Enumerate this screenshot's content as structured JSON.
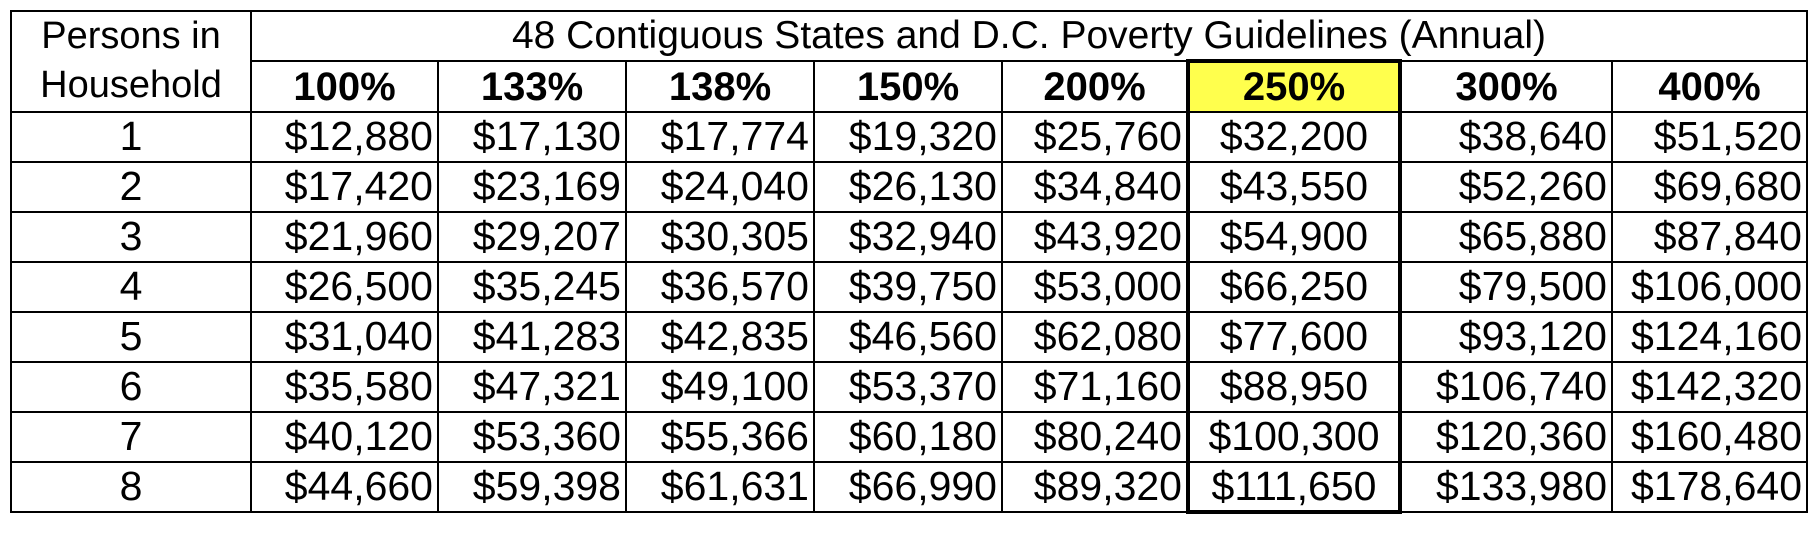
{
  "header": {
    "corner": [
      "Persons in",
      "Household"
    ],
    "title": "48 Contiguous States and D.C. Poverty Guidelines (Annual)",
    "columns": [
      "100%",
      "133%",
      "138%",
      "150%",
      "200%",
      "250%",
      "300%",
      "400%"
    ]
  },
  "table": {
    "rows": [
      [
        "1",
        "$12,880",
        "$17,130",
        "$17,774",
        "$19,320",
        "$25,760",
        "$32,200",
        "$38,640",
        "$51,520"
      ],
      [
        "2",
        "$17,420",
        "$23,169",
        "$24,040",
        "$26,130",
        "$34,840",
        "$43,550",
        "$52,260",
        "$69,680"
      ],
      [
        "3",
        "$21,960",
        "$29,207",
        "$30,305",
        "$32,940",
        "$43,920",
        "$54,900",
        "$65,880",
        "$87,840"
      ],
      [
        "4",
        "$26,500",
        "$35,245",
        "$36,570",
        "$39,750",
        "$53,000",
        "$66,250",
        "$79,500",
        "$106,000"
      ],
      [
        "5",
        "$31,040",
        "$41,283",
        "$42,835",
        "$46,560",
        "$62,080",
        "$77,600",
        "$93,120",
        "$124,160"
      ],
      [
        "6",
        "$35,580",
        "$47,321",
        "$49,100",
        "$53,370",
        "$71,160",
        "$88,950",
        "$106,740",
        "$142,320"
      ],
      [
        "7",
        "$40,120",
        "$53,360",
        "$55,366",
        "$60,180",
        "$80,240",
        "$100,300",
        "$120,360",
        "$160,480"
      ],
      [
        "8",
        "$44,660",
        "$59,398",
        "$61,631",
        "$66,990",
        "$89,320",
        "$111,650",
        "$133,980",
        "$178,640"
      ]
    ]
  }
}
